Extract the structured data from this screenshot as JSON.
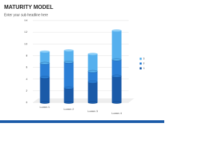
{
  "header": {
    "title": "MATURITY MODEL",
    "subtitle": "Enter your sub headline here"
  },
  "chart_data": {
    "type": "stacked-bar",
    "categories": [
      "Lorem 1",
      "Lorem 2",
      "Lorem 3",
      "Lorem 4"
    ],
    "series": [
      {
        "name": "1",
        "color": "#1a5aa8",
        "values": [
          4.3,
          2.5,
          3.5,
          4.5
        ]
      },
      {
        "name": "2",
        "color": "#2b7fd6",
        "values": [
          2.4,
          4.4,
          1.8,
          2.8
        ]
      },
      {
        "name": "3",
        "color": "#56b0ee",
        "values": [
          2,
          2,
          3,
          5
        ]
      }
    ],
    "ylim": [
      0,
      14
    ],
    "yticks": [
      0,
      2,
      4,
      6,
      8,
      10,
      12,
      14
    ],
    "grid": true,
    "legend": "right"
  }
}
